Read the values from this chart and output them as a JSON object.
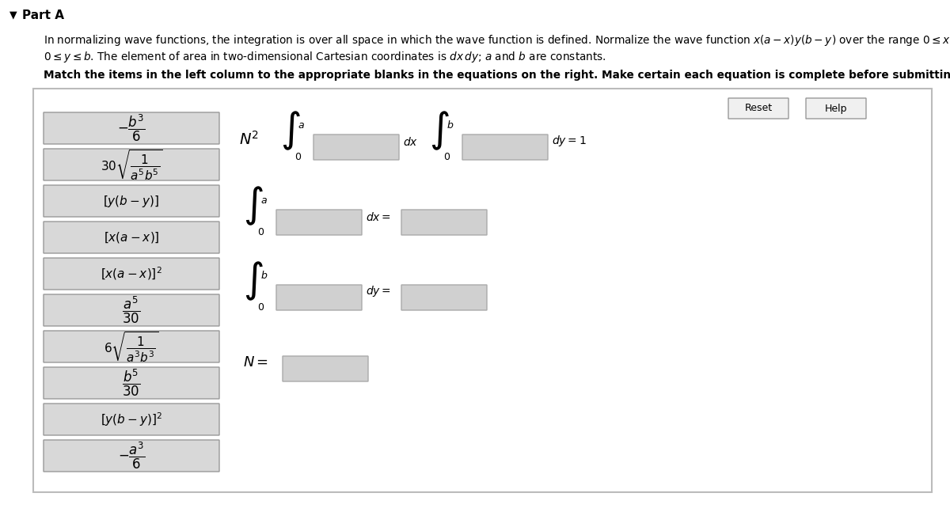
{
  "bg_color": "#ffffff",
  "panel_border": "#aaaaaa",
  "box_bg": "#d8d8d8",
  "box_border": "#999999",
  "blank_bg": "#d0d0d0",
  "blank_border": "#aaaaaa",
  "left_items": [
    "$-\\dfrac{b^3}{6}$",
    "$30\\sqrt{\\dfrac{1}{a^5b^5}}$",
    "$[y(b-y)]$",
    "$[x(a-x)]$",
    "$[x(a-x)]^2$",
    "$\\dfrac{a^5}{30}$",
    "$6\\sqrt{\\dfrac{1}{a^3b^3}}$",
    "$\\dfrac{b^5}{30}$",
    "$[y(b-y)]^2$",
    "$-\\dfrac{a^3}{6}$"
  ],
  "item_fontsizes": [
    12,
    11,
    11,
    11,
    11,
    12,
    11,
    12,
    11,
    12
  ]
}
